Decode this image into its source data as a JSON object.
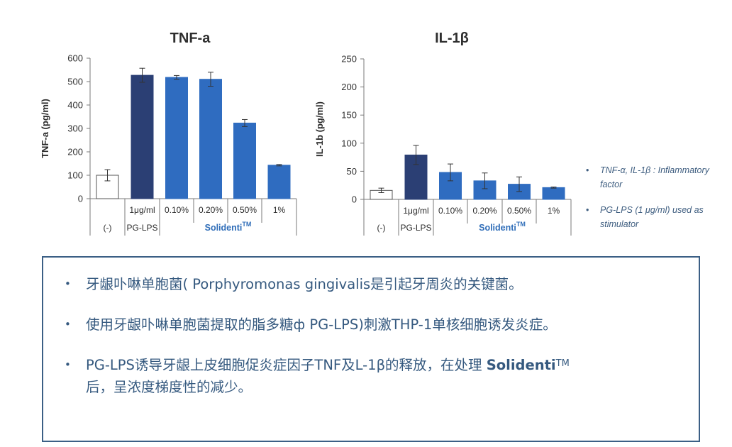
{
  "chart_data": [
    {
      "type": "bar",
      "title": "TNF-a",
      "ylabel": "TNF-a (pg/ml)",
      "xlabel": "",
      "ylim": [
        0,
        600
      ],
      "yticks": [
        "0",
        "100",
        "200",
        "300",
        "400",
        "500",
        "600"
      ],
      "categories": [
        "(-)",
        "1μg/ml",
        "0.10%",
        "0.20%",
        "0.50%",
        "1%"
      ],
      "group_labels": [
        "(-)",
        "PG-LPS",
        "SolidentiTM"
      ],
      "values": [
        100,
        527,
        518,
        510,
        323,
        143
      ],
      "errors": [
        24,
        30,
        8,
        30,
        15,
        3
      ],
      "colors": [
        "#ffffff",
        "#2b3f74",
        "#2f6cc0",
        "#2f6cc0",
        "#2f6cc0",
        "#2f6cc0"
      ],
      "grid": false
    },
    {
      "type": "bar",
      "title": "IL-1β",
      "ylabel": "IL-1b (pg/ml)",
      "xlabel": "",
      "ylim": [
        0,
        250
      ],
      "yticks": [
        "0",
        "50",
        "100",
        "150",
        "200",
        "250"
      ],
      "categories": [
        "(-)",
        "1μg/ml",
        "0.10%",
        "0.20%",
        "0.50%",
        "1%"
      ],
      "group_labels": [
        "(-)",
        "PG-LPS",
        "SolidentiTM"
      ],
      "values": [
        16,
        79,
        48,
        33,
        27,
        21
      ],
      "errors": [
        4,
        17,
        15,
        14,
        13,
        1
      ],
      "colors": [
        "#ffffff",
        "#2b3f74",
        "#2f6cc0",
        "#2f6cc0",
        "#2f6cc0",
        "#2f6cc0"
      ],
      "grid": false
    }
  ],
  "notes": [
    {
      "bullet": "•",
      "text": "TNF-α, IL-1β : Inflammatory factor"
    },
    {
      "bullet": "•",
      "text": "PG-LPS (1 μg/ml) used as stimulator"
    }
  ],
  "summary": {
    "bullet": "•",
    "item1": "牙龈卟啉单胞菌( Porphyromonas gingivalis是引起牙周炎的关键菌。",
    "item2": "使用牙龈卟啉单胞菌提取的脂多糖ф PG-LPS)刺激THP-1单核细胞诱发炎症。",
    "item3_prefix": "PG-LPS诱导牙龈上皮细胞促炎症因子TNF及L-1β的释放，在处理",
    "item3_brand": "Solidenti",
    "item3_tm": "TM",
    "item3_suffix": "后，呈浓度梯度性的减少。"
  }
}
